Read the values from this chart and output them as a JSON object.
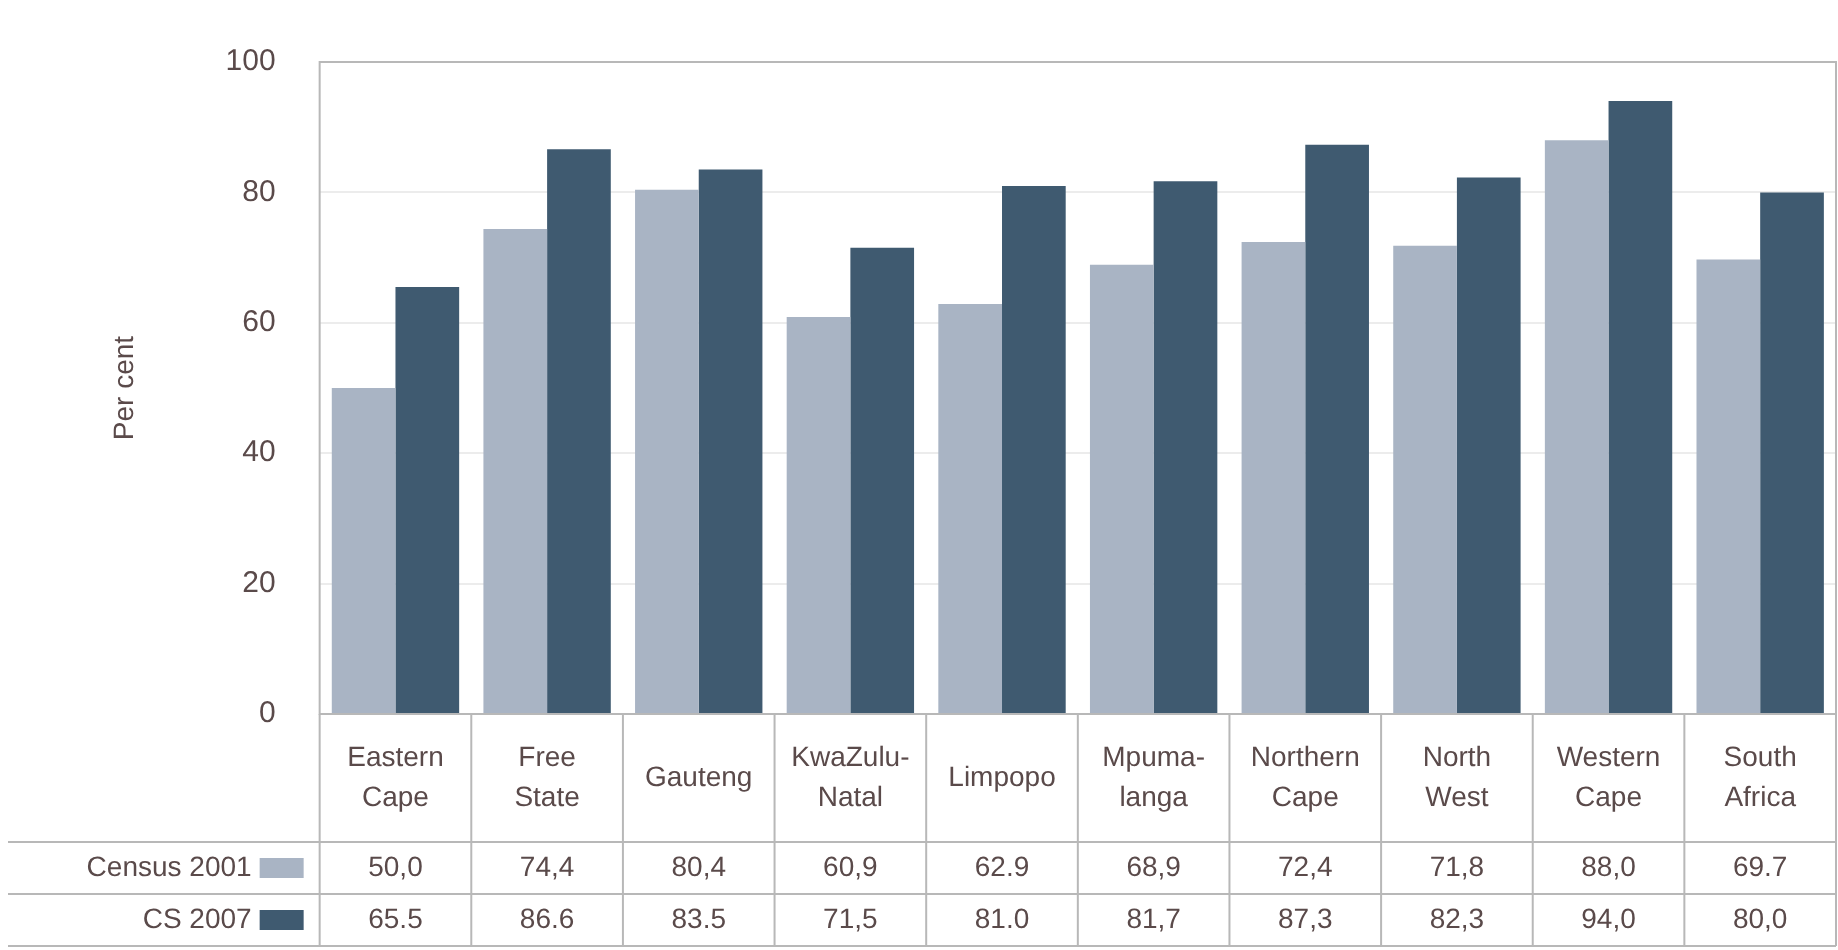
{
  "chart_data": {
    "type": "bar",
    "ylabel": "Per cent",
    "categories": [
      "Eastern Cape",
      "Free State",
      "Gauteng",
      "KwaZulu-Natal",
      "Limpopo",
      "Mpuma-langa",
      "Northern Cape",
      "North West",
      "Western Cape",
      "South Africa"
    ],
    "series": [
      {
        "name": "Census 2001",
        "color": "#a9b4c4",
        "values": [
          50.0,
          74.4,
          80.4,
          60.9,
          62.9,
          68.9,
          72.4,
          71.8,
          88.0,
          69.7
        ],
        "value_labels": [
          "50,0",
          "74,4",
          "80,4",
          "60,9",
          "62.9",
          "68,9",
          "72,4",
          "71,8",
          "88,0",
          "69.7"
        ]
      },
      {
        "name": "CS 2007",
        "color": "#3f5a70",
        "values": [
          65.5,
          86.6,
          83.5,
          71.5,
          81.0,
          81.7,
          87.3,
          82.3,
          94.0,
          80.0
        ],
        "value_labels": [
          "65.5",
          "86.6",
          "83.5",
          "71,5",
          "81.0",
          "81,7",
          "87,3",
          "82,3",
          "94,0",
          "80,0"
        ]
      }
    ],
    "ylim": [
      0,
      100
    ],
    "yticks": [
      0,
      20,
      40,
      60,
      80,
      100
    ],
    "grid": "y",
    "legend": "bottom left"
  }
}
